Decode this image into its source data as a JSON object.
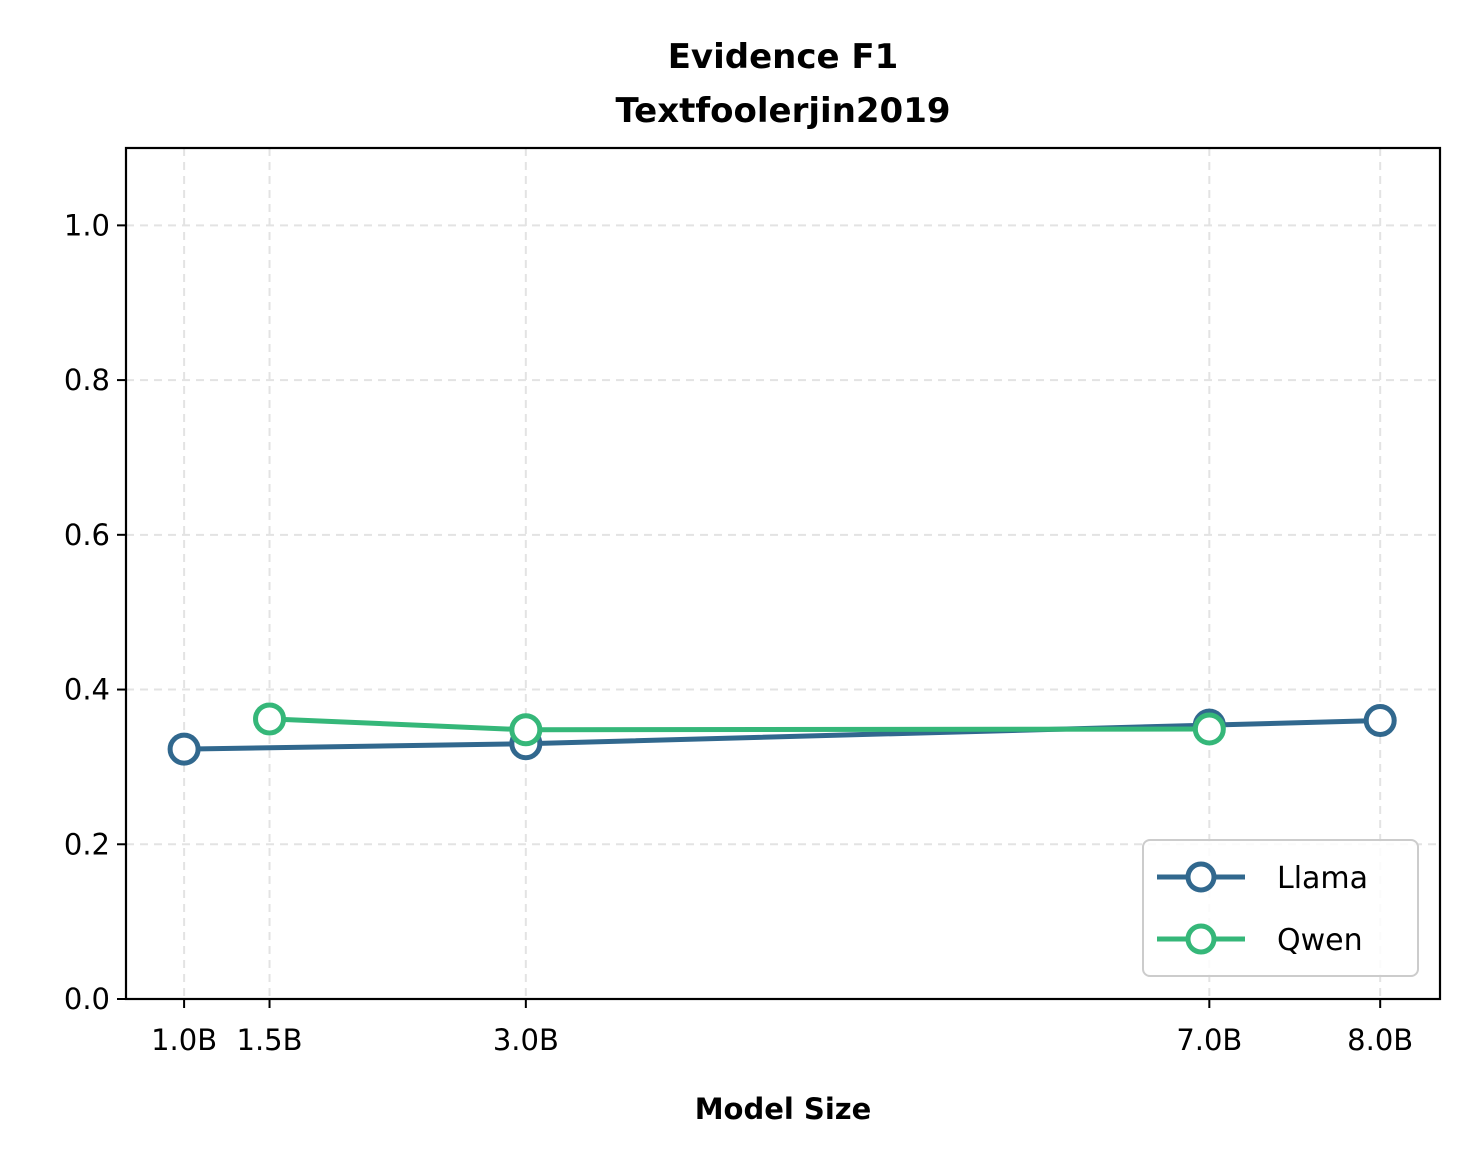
{
  "chart_data": {
    "type": "line",
    "title": "Evidence F1",
    "subtitle": "Textfoolerjin2019",
    "xlabel": "Model Size",
    "ylabel": "",
    "x": [
      1.0,
      1.5,
      3.0,
      7.0,
      8.0
    ],
    "x_tick_labels": [
      "1.0B",
      "1.5B",
      "3.0B",
      "7.0B",
      "8.0B"
    ],
    "xlim": [
      0.66,
      8.35
    ],
    "ylim": [
      0.0,
      1.1
    ],
    "y_ticks": [
      0.0,
      0.2,
      0.4,
      0.6,
      0.8,
      1.0
    ],
    "y_tick_labels": [
      "0.0",
      "0.2",
      "0.4",
      "0.6",
      "0.8",
      "1.0"
    ],
    "grid": true,
    "legend_position": "bottom-right",
    "series": [
      {
        "name": "Llama",
        "color": "#31688e",
        "x": [
          1.0,
          3.0,
          7.0,
          8.0
        ],
        "values": [
          0.323,
          0.33,
          0.354,
          0.36
        ]
      },
      {
        "name": "Qwen",
        "color": "#35b779",
        "x": [
          1.5,
          3.0,
          7.0
        ],
        "values": [
          0.362,
          0.348,
          0.349
        ]
      }
    ]
  }
}
